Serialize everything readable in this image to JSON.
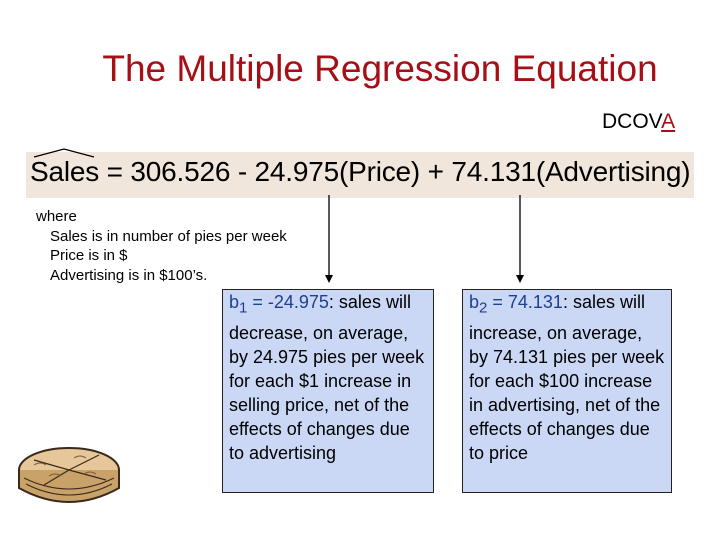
{
  "title": "The Multiple Regression Equation",
  "dcova": {
    "prefix": "DCOV",
    "highlight": "A"
  },
  "equation": {
    "lhs": "Sales",
    "equals": "=",
    "b0": "306.526",
    "minus": "-",
    "b1": "24.975",
    "x1": "(Price)",
    "plus": "+",
    "b2": "74.131",
    "x2": "(Advertising)"
  },
  "where": {
    "heading": "where",
    "lines": [
      "Sales is in number of pies per week",
      "Price is in $",
      "Advertising is in $100’s."
    ]
  },
  "callouts": [
    {
      "coef_symbol": "b",
      "coef_subscript": "1",
      "coef_value": " = -24.975",
      "text": ": sales will decrease, on average, by 24.975 pies per week for each $1 increase in selling price, net of the effects of changes due to advertising"
    },
    {
      "coef_symbol": "b",
      "coef_subscript": "2",
      "coef_value": " = 74.131",
      "text": ": sales will increase, on average, by 74.131 pies per week for each $100 increase in advertising, net of the effects of changes due to price"
    }
  ],
  "colors": {
    "title": "#a50f15",
    "equation_band": "#f1e6dc",
    "callout_fill": "#cad7f5",
    "coef_text": "#1f3f8f"
  },
  "icons": [
    "pie-icon",
    "arrow-down-icon"
  ]
}
